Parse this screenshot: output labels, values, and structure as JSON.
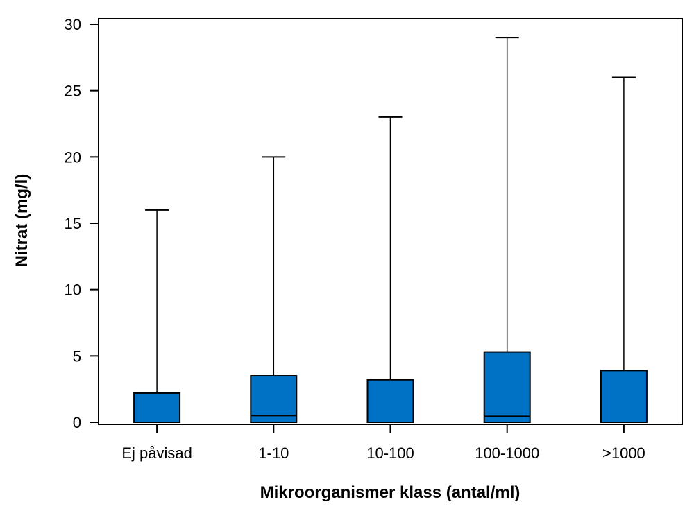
{
  "chart_data": {
    "type": "boxplot",
    "xlabel": "Mikroorganismer klass (antal/ml)",
    "ylabel": "Nitrat (mg/l)",
    "ylim": [
      0,
      30
    ],
    "yticks": [
      0,
      5,
      10,
      15,
      20,
      25,
      30
    ],
    "categories": [
      "Ej påvisad",
      "1-10",
      "10-100",
      "100-1000",
      ">1000"
    ],
    "boxes": [
      {
        "category": "Ej påvisad",
        "min": 0,
        "q1": 0,
        "median": 0,
        "q3": 2.2,
        "max": 16
      },
      {
        "category": "1-10",
        "min": 0,
        "q1": 0,
        "median": 0.5,
        "q3": 3.5,
        "max": 20
      },
      {
        "category": "10-100",
        "min": 0,
        "q1": 0,
        "median": 0,
        "q3": 3.2,
        "max": 23
      },
      {
        "category": "100-1000",
        "min": 0,
        "q1": 0,
        "median": 0.45,
        "q3": 5.3,
        "max": 29
      },
      {
        "category": ">1000",
        "min": 0,
        "q1": 0,
        "median": 0,
        "q3": 3.9,
        "max": 26
      }
    ],
    "box_color": "#0072C6",
    "grid": false,
    "legend": "none"
  }
}
